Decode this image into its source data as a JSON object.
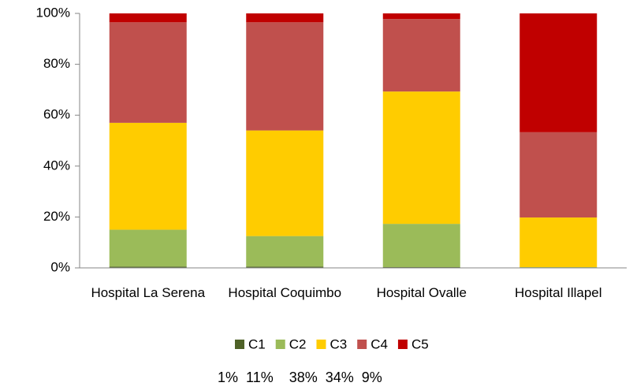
{
  "chart_data": {
    "type": "stacked_bar",
    "categories": [
      "Hospital La Serena",
      "Hospital Coquimbo",
      "Hospital Ovalle",
      "Hospital Illapel"
    ],
    "series": [
      {
        "name": "C1",
        "color": "#4f6228",
        "values": [
          0.5,
          0.5,
          0.3,
          0
        ]
      },
      {
        "name": "C2",
        "color": "#9bbb59",
        "values": [
          14.5,
          12,
          17,
          0.3
        ]
      },
      {
        "name": "C3",
        "color": "#ffcc00",
        "values": [
          42,
          41.5,
          52,
          19.5
        ]
      },
      {
        "name": "C4",
        "color": "#c0504d",
        "values": [
          39.5,
          42.5,
          28.5,
          33.5
        ]
      },
      {
        "name": "C5",
        "color": "#c00000",
        "values": [
          3.5,
          3.5,
          2.2,
          46.7
        ]
      }
    ],
    "ylim": [
      0,
      100
    ],
    "yticks": [
      {
        "value": 0,
        "label": "0%"
      },
      {
        "value": 20,
        "label": "20%"
      },
      {
        "value": 40,
        "label": "40%"
      },
      {
        "value": 60,
        "label": "60%"
      },
      {
        "value": 80,
        "label": "80%"
      },
      {
        "value": 100,
        "label": "100%"
      }
    ],
    "grid": false,
    "legend": "bottom",
    "annotation": "1%  11%    38%  34%  9%"
  }
}
